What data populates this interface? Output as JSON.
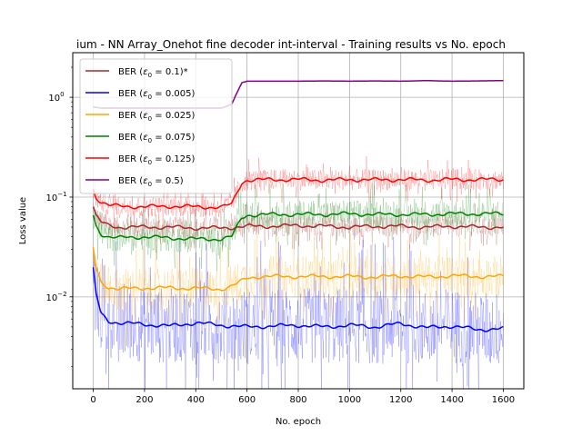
{
  "chart_data": {
    "type": "line",
    "title": "ium - NN Array_Onehot fine decoder int-interval - Training results vs No. epoch",
    "xlabel": "No. epoch",
    "ylabel": "Loss value",
    "xlim": [
      -80,
      1680
    ],
    "ylim": [
      0.0012,
      2.8
    ],
    "yscale": "log",
    "grid": true,
    "legend_position": "top-left",
    "x_ticks": [
      0,
      200,
      400,
      600,
      800,
      1000,
      1200,
      1400,
      1600
    ],
    "x_tick_labels": [
      "0",
      "200",
      "400",
      "600",
      "800",
      "1000",
      "1200",
      "1400",
      "1600"
    ],
    "y_ticks": [
      0.01,
      0.1,
      1
    ],
    "y_tick_labels": [
      "10",
      "10",
      "10"
    ],
    "y_tick_exponents": [
      "−2",
      "−1",
      "0"
    ],
    "series": [
      {
        "name": "BER (ε0 = 0.1)*",
        "legend_prefix": "BER (",
        "legend_symbol": "ε",
        "legend_sub": "0",
        "legend_suffix": " = 0.1)*",
        "color": "#a52a2a",
        "noise": 0.15,
        "x": [
          0,
          10,
          30,
          60,
          100,
          200,
          300,
          400,
          500,
          560,
          600,
          700,
          800,
          900,
          1000,
          1100,
          1200,
          1300,
          1400,
          1500,
          1600
        ],
        "values": [
          0.08,
          0.065,
          0.056,
          0.052,
          0.05,
          0.05,
          0.05,
          0.049,
          0.049,
          0.05,
          0.051,
          0.051,
          0.052,
          0.051,
          0.05,
          0.051,
          0.051,
          0.05,
          0.051,
          0.05,
          0.05
        ]
      },
      {
        "name": "BER (ε0 = 0.005)",
        "legend_prefix": "BER (",
        "legend_symbol": "ε",
        "legend_sub": "0",
        "legend_suffix": " = 0.005)",
        "color": "#0000ff",
        "noise": 0.55,
        "x": [
          0,
          10,
          30,
          60,
          100,
          200,
          300,
          400,
          500,
          600,
          700,
          800,
          900,
          1000,
          1100,
          1200,
          1300,
          1400,
          1500,
          1600
        ],
        "values": [
          0.019,
          0.011,
          0.0068,
          0.0057,
          0.0055,
          0.0053,
          0.0051,
          0.0055,
          0.0052,
          0.005,
          0.0051,
          0.0052,
          0.005,
          0.0052,
          0.005,
          0.0054,
          0.0049,
          0.0051,
          0.0047,
          0.0048
        ]
      },
      {
        "name": "BER (ε0 = 0.025)",
        "legend_prefix": "BER (",
        "legend_symbol": "ε",
        "legend_sub": "0",
        "legend_suffix": " = 0.025)",
        "color": "#ffa500",
        "noise": 0.3,
        "x": [
          0,
          10,
          30,
          60,
          100,
          200,
          300,
          400,
          500,
          530,
          560,
          600,
          650,
          700,
          800,
          900,
          1000,
          1100,
          1200,
          1300,
          1400,
          1500,
          1600
        ],
        "values": [
          0.031,
          0.02,
          0.014,
          0.0125,
          0.012,
          0.0123,
          0.0123,
          0.0122,
          0.012,
          0.0125,
          0.0135,
          0.0155,
          0.016,
          0.016,
          0.016,
          0.016,
          0.016,
          0.0158,
          0.0162,
          0.0158,
          0.0163,
          0.016,
          0.016
        ]
      },
      {
        "name": "BER (ε0 = 0.075)",
        "legend_prefix": "BER (",
        "legend_symbol": "ε",
        "legend_sub": "0",
        "legend_suffix": " = 0.075)",
        "color": "#008000",
        "noise": 0.2,
        "x": [
          0,
          10,
          30,
          60,
          100,
          200,
          300,
          400,
          500,
          540,
          560,
          580,
          600,
          700,
          800,
          900,
          1000,
          1100,
          1200,
          1300,
          1400,
          1500,
          1600
        ],
        "values": [
          0.066,
          0.052,
          0.043,
          0.04,
          0.039,
          0.04,
          0.039,
          0.038,
          0.038,
          0.04,
          0.05,
          0.062,
          0.066,
          0.067,
          0.067,
          0.067,
          0.068,
          0.067,
          0.067,
          0.067,
          0.068,
          0.068,
          0.068
        ]
      },
      {
        "name": "BER (ε0 = 0.125)",
        "legend_prefix": "BER (",
        "legend_symbol": "ε",
        "legend_sub": "0",
        "legend_suffix": " = 0.125)",
        "color": "#ff0000",
        "noise": 0.15,
        "x": [
          0,
          10,
          30,
          60,
          100,
          200,
          300,
          400,
          500,
          540,
          560,
          580,
          600,
          700,
          800,
          900,
          1000,
          1100,
          1200,
          1300,
          1400,
          1500,
          1600
        ],
        "values": [
          0.12,
          0.1,
          0.09,
          0.083,
          0.081,
          0.08,
          0.081,
          0.08,
          0.079,
          0.085,
          0.11,
          0.14,
          0.148,
          0.15,
          0.15,
          0.148,
          0.15,
          0.149,
          0.15,
          0.148,
          0.15,
          0.15,
          0.15
        ]
      },
      {
        "name": "BER (ε0 = 0.5)",
        "legend_prefix": "BER (",
        "legend_symbol": "ε",
        "legend_sub": "0",
        "legend_suffix": " = 0.5)",
        "color": "#800080",
        "noise": 0.0,
        "x": [
          0,
          30,
          60,
          100,
          200,
          300,
          400,
          500,
          540,
          560,
          580,
          600,
          700,
          800,
          900,
          1000,
          1100,
          1200,
          1300,
          1400,
          1500,
          1600
        ],
        "values": [
          0.8,
          0.78,
          0.78,
          0.78,
          0.78,
          0.78,
          0.78,
          0.78,
          0.85,
          1.1,
          1.4,
          1.45,
          1.45,
          1.45,
          1.46,
          1.45,
          1.46,
          1.45,
          1.47,
          1.45,
          1.46,
          1.47
        ]
      }
    ]
  }
}
